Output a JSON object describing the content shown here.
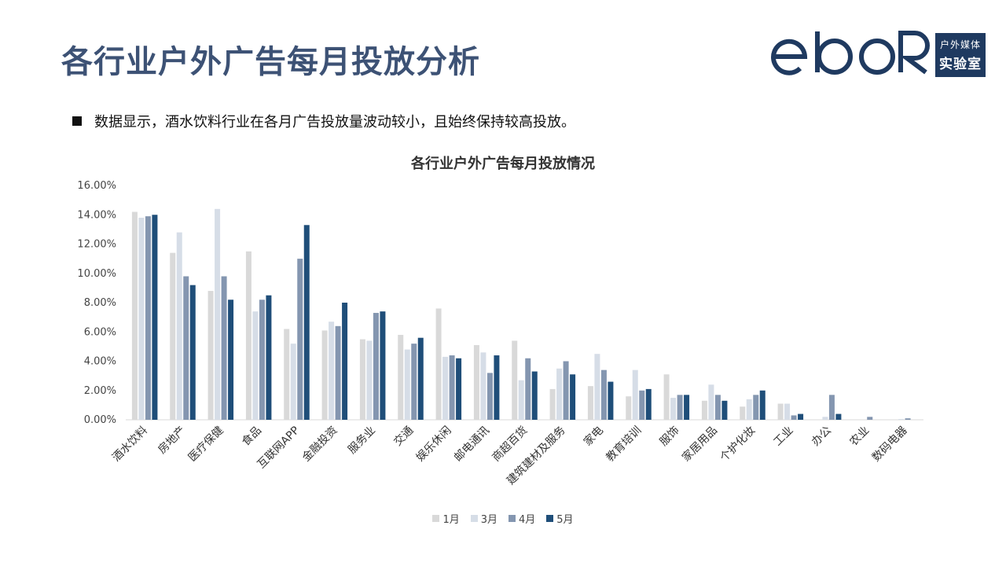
{
  "header": {
    "title": "各行业户外广告每月投放分析",
    "logo": {
      "wordmark": "ebor",
      "badge_line1": "户外媒体",
      "badge_line2": "实验室",
      "color": "#1f3a60"
    }
  },
  "summary": {
    "text": "数据显示，酒水饮料行业在各月广告投放量波动较小，且始终保持较高投放。"
  },
  "chart_data": {
    "type": "bar",
    "title": "各行业户外广告每月投放情况",
    "xlabel": "",
    "ylabel": "",
    "ylim": [
      0,
      16
    ],
    "yticks": [
      "0.00%",
      "2.00%",
      "4.00%",
      "6.00%",
      "8.00%",
      "10.00%",
      "12.00%",
      "14.00%",
      "16.00%"
    ],
    "categories": [
      "酒水饮料",
      "房地产",
      "医疗保健",
      "食品",
      "互联网APP",
      "金融投资",
      "服务业",
      "交通",
      "娱乐休闲",
      "邮电通讯",
      "商超百货",
      "建筑建材及服务",
      "家电",
      "教育培训",
      "服饰",
      "家居用品",
      "个护化妆",
      "工业",
      "办公",
      "农业",
      "数码电器"
    ],
    "series": [
      {
        "name": "1月",
        "color": "#d9d9d9",
        "values": [
          14.2,
          11.4,
          8.8,
          11.5,
          6.2,
          6.1,
          5.5,
          5.8,
          7.6,
          5.1,
          5.4,
          2.1,
          2.3,
          1.6,
          3.1,
          1.3,
          0.9,
          1.1,
          0.0,
          0.0,
          0.0
        ]
      },
      {
        "name": "3月",
        "color": "#d6dde7",
        "values": [
          13.8,
          12.8,
          14.4,
          7.4,
          5.2,
          6.7,
          5.4,
          4.8,
          4.3,
          4.6,
          2.7,
          3.5,
          4.5,
          3.4,
          1.5,
          2.4,
          1.4,
          1.1,
          0.2,
          0.0,
          0.05
        ]
      },
      {
        "name": "4月",
        "color": "#8496b0",
        "values": [
          13.9,
          9.8,
          9.8,
          8.2,
          11.0,
          6.4,
          7.3,
          5.2,
          4.4,
          3.2,
          4.2,
          4.0,
          3.4,
          2.0,
          1.7,
          1.7,
          1.7,
          0.3,
          1.7,
          0.2,
          0.1
        ]
      },
      {
        "name": "5月",
        "color": "#1f4e79",
        "values": [
          14.0,
          9.2,
          8.2,
          8.5,
          13.3,
          8.0,
          7.4,
          5.6,
          4.2,
          4.4,
          3.3,
          3.1,
          2.6,
          2.1,
          1.7,
          1.3,
          2.0,
          0.4,
          0.4,
          0.0,
          0.0
        ]
      }
    ],
    "legend_position": "bottom",
    "grid": false
  }
}
